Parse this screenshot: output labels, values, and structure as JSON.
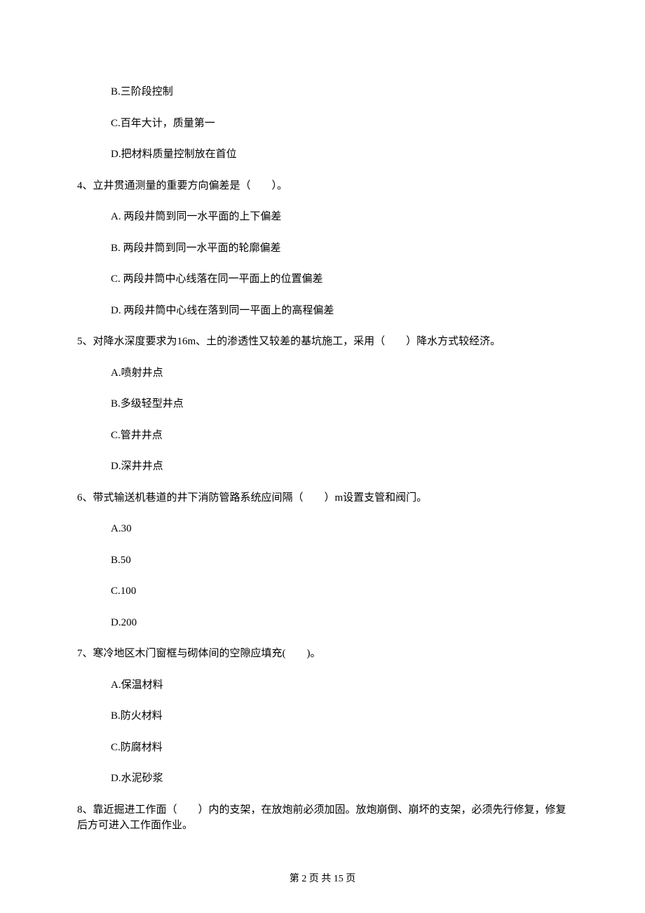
{
  "options_q3": {
    "b": "B.三阶段控制",
    "c": "C.百年大计，质量第一",
    "d": "D.把材料质量控制放在首位"
  },
  "q4": {
    "text": "4、立井贯通测量的重要方向偏差是（　　）。",
    "a": "A.  两段井筒到同一水平面的上下偏差",
    "b": "B.  两段井筒到同一水平面的轮廓偏差",
    "c": "C.  两段井筒中心线落在同一平面上的位置偏差",
    "d": "D.  两段井筒中心线在落到同一平面上的高程偏差"
  },
  "q5": {
    "text": "5、对降水深度要求为16m、土的渗透性又较差的基坑施工，采用（　　）降水方式较经济。",
    "a": "A.喷射井点",
    "b": "B.多级轻型井点",
    "c": "C.管井井点",
    "d": "D.深井井点"
  },
  "q6": {
    "text": "6、带式输送机巷道的井下消防管路系统应间隔（　　）m设置支管和阀门。",
    "a": "A.30",
    "b": "B.50",
    "c": "C.100",
    "d": "D.200"
  },
  "q7": {
    "text": "7、寒冷地区木门窗框与砌体间的空隙应填充(　　)。",
    "a": "A.保温材料",
    "b": "B.防火材料",
    "c": "C.防腐材料",
    "d": "D.水泥砂浆"
  },
  "q8": {
    "text": "8、靠近掘进工作面（　　）内的支架，在放炮前必须加固。放炮崩倒、崩坏的支架，必须先行修复，修复后方可进入工作面作业。"
  },
  "footer": {
    "text": "第 2 页 共 15 页"
  }
}
